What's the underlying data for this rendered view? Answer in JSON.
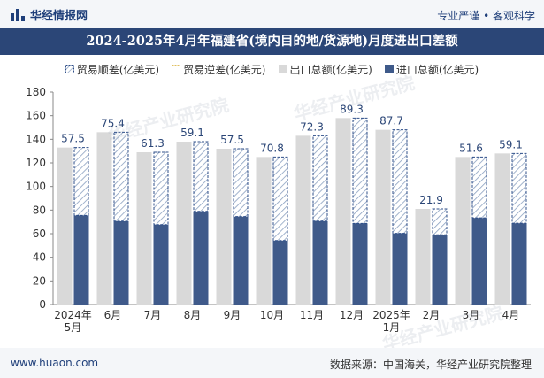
{
  "header": {
    "brand": "华经情报网",
    "slogan": "专业严谨 • 客观科学"
  },
  "footer": {
    "site": "www.huaon.com",
    "source": "数据来源：中国海关，华经产业研究院整理"
  },
  "watermark": "华经产业研究院",
  "colors": {
    "header_bg": "#2b4677",
    "export": "#d9d9d9",
    "import": "#3f5a8a",
    "surplus_border": "#2f4f8a",
    "deficit_border": "#e0c060"
  },
  "chart_data": {
    "type": "bar",
    "title": "2024-2025年4月年福建省(境内目的地/货源地)月度进出口差额",
    "legend": [
      "贸易顺差(亿美元)",
      "贸易逆差(亿美元)",
      "出口总额(亿美元)",
      "进口总额(亿美元)"
    ],
    "categories": [
      [
        "2024年",
        "5月"
      ],
      [
        "6月"
      ],
      [
        "7月"
      ],
      [
        "8月"
      ],
      [
        "9月"
      ],
      [
        "10月"
      ],
      [
        "11月"
      ],
      [
        "12月"
      ],
      [
        "2025年",
        "1月"
      ],
      [
        "2月"
      ],
      [
        "3月"
      ],
      [
        "4月"
      ]
    ],
    "series": [
      {
        "name": "贸易顺差(亿美元)",
        "values": [
          57.5,
          75.4,
          61.3,
          59.1,
          57.5,
          70.8,
          72.3,
          89.3,
          87.7,
          21.9,
          51.6,
          59.1
        ]
      },
      {
        "name": "出口总额(亿美元)",
        "values": [
          133,
          146,
          129,
          138,
          132,
          125,
          143,
          158,
          148,
          81,
          125,
          128
        ]
      },
      {
        "name": "进口总额(亿美元)",
        "values": [
          75.5,
          70.6,
          67.7,
          78.9,
          74.5,
          54.2,
          70.7,
          68.7,
          60.3,
          59.1,
          73.4,
          68.9
        ]
      }
    ],
    "data_labels": [
      "57.5",
      "75.4",
      "61.3",
      "59.1",
      "57.5",
      "70.8",
      "72.3",
      "89.3",
      "87.7",
      "21.9",
      "51.6",
      "59.1"
    ],
    "yticks": [
      "0",
      "20",
      "40",
      "60",
      "80",
      "100",
      "120",
      "140",
      "160",
      "180"
    ],
    "ylim": [
      0,
      180
    ],
    "grid": false,
    "legend_position": "top"
  }
}
